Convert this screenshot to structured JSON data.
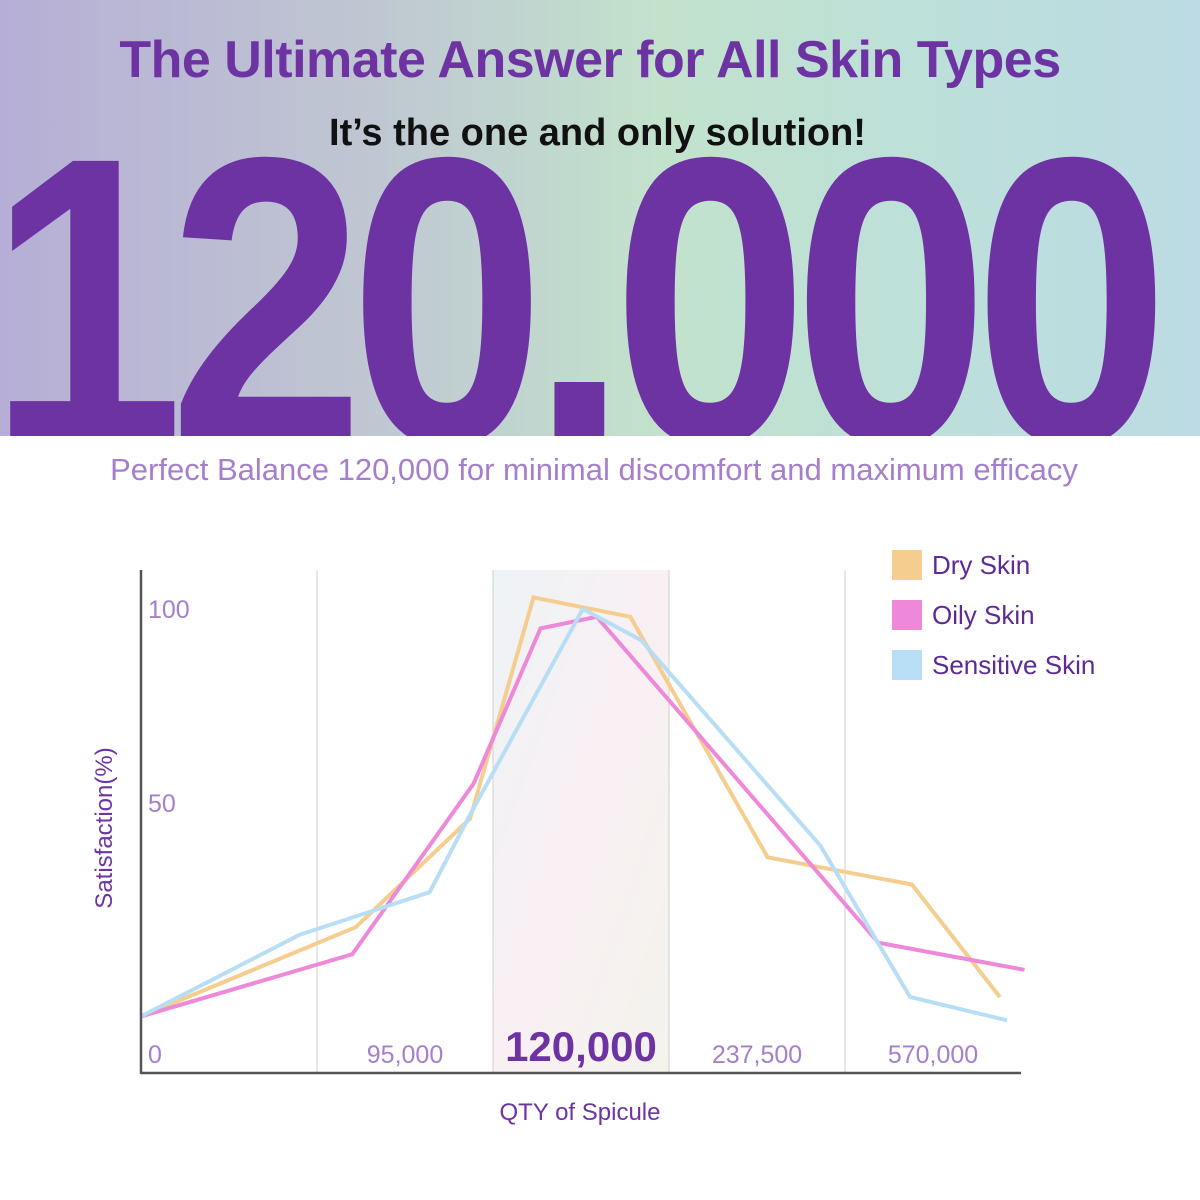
{
  "header": {
    "title": "The Ultimate Answer for All Skin Types",
    "subtitle": "It’s the one and only solution!",
    "big_number": "120,000",
    "tagline": "Perfect Balance 120,000 for minimal discomfort and maximum efficacy"
  },
  "colors": {
    "brand_purple": "#6e33a3",
    "light_purple": "#a67fcc",
    "dry": "#f5cd8e",
    "oily": "#ee88d8",
    "sensitive": "#b8def5",
    "highlight_band": "#f6f1f3"
  },
  "chart_data": {
    "type": "line",
    "xlabel": "QTY of Spicule",
    "ylabel": "Satisfaction(%)",
    "x_tick_labels": [
      "0",
      "95,000",
      "120,000",
      "237,500",
      "570,000"
    ],
    "highlighted_tick": "120,000",
    "y_ticks": [
      {
        "value": 100,
        "label": "100"
      },
      {
        "value": 50,
        "label": "50"
      }
    ],
    "ylim": [
      -20,
      110
    ],
    "x_scale": "categorical bands (x in band units, 0 = axis origin, 5 = right end)",
    "xlim": [
      0,
      5
    ],
    "grid": "vertical band separators",
    "legend_placement": "top-right",
    "series": [
      {
        "name": "Dry Skin",
        "color": "#f5cd8e",
        "points": [
          [
            0,
            -5
          ],
          [
            1.22,
            18
          ],
          [
            1.87,
            46
          ],
          [
            2.23,
            103
          ],
          [
            2.78,
            98
          ],
          [
            3.56,
            36
          ],
          [
            4.38,
            29
          ],
          [
            4.88,
            0
          ]
        ]
      },
      {
        "name": "Oily Skin",
        "color": "#ee88d8",
        "points": [
          [
            0,
            -5
          ],
          [
            1.2,
            11
          ],
          [
            1.89,
            55
          ],
          [
            2.27,
            95
          ],
          [
            2.59,
            98
          ],
          [
            4.19,
            14
          ],
          [
            5.02,
            7
          ]
        ]
      },
      {
        "name": "Sensitive Skin",
        "color": "#b8def5",
        "points": [
          [
            0,
            -5
          ],
          [
            0.9,
            16
          ],
          [
            1.64,
            27
          ],
          [
            1.87,
            47
          ],
          [
            2.51,
            100
          ],
          [
            2.84,
            92
          ],
          [
            3.86,
            39
          ],
          [
            4.37,
            0
          ],
          [
            4.92,
            -6
          ]
        ]
      }
    ]
  }
}
